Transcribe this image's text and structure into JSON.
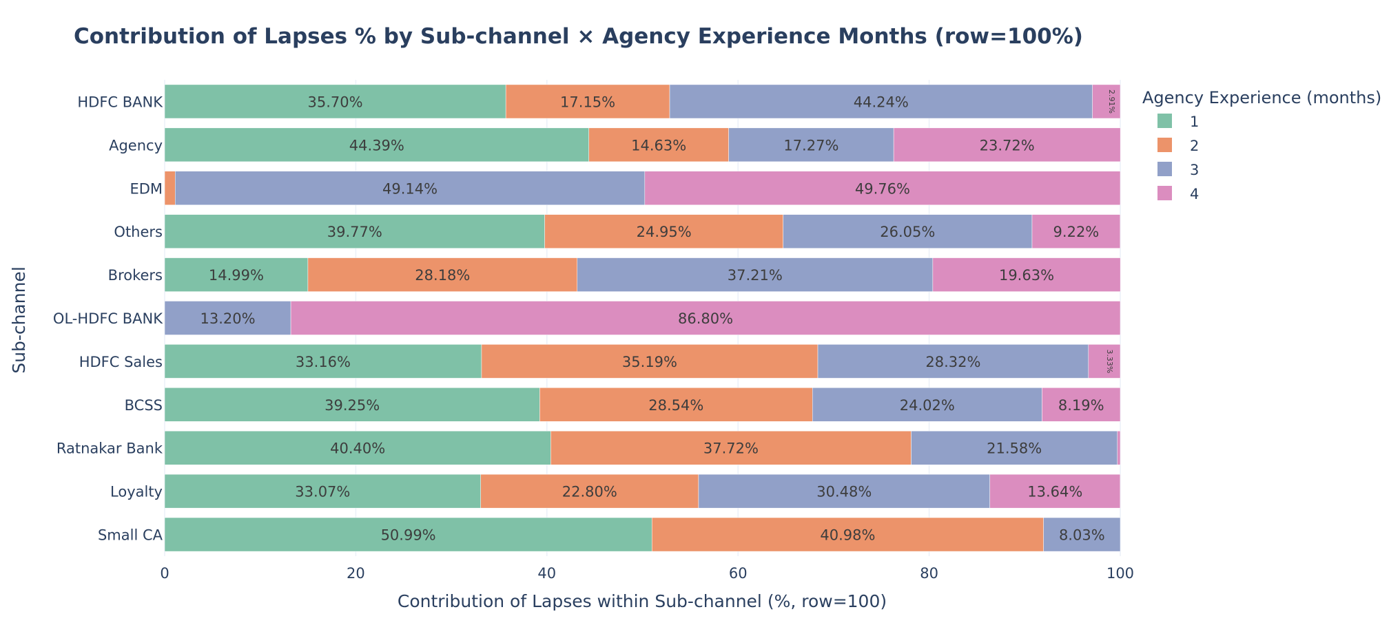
{
  "chart_data": {
    "type": "bar",
    "orientation": "horizontal",
    "stacked": true,
    "title": "Contribution of Lapses % by Sub-channel × Agency Experience Months (row=100%)",
    "xlabel": "Contribution of Lapses within Sub-channel (%, row=100)",
    "ylabel": "Sub-channel",
    "xlim": [
      0,
      100
    ],
    "xticks": [
      0,
      20,
      40,
      60,
      80,
      100
    ],
    "grid": true,
    "legend": {
      "title": "Agency Experience (months)",
      "placement": "right"
    },
    "categories": [
      "HDFC BANK",
      "Agency",
      "EDM",
      "Others",
      "Brokers",
      "OL-HDFC BANK",
      "HDFC Sales",
      "BCSS",
      "Ratnakar Bank",
      "Loyalty",
      "Small CA"
    ],
    "series": [
      {
        "name": "1",
        "color": "#7fc1a7",
        "values": [
          35.7,
          44.39,
          0,
          39.77,
          14.99,
          0,
          33.16,
          39.25,
          40.4,
          33.07,
          50.99
        ],
        "labels": [
          "35.70%",
          "44.39%",
          "",
          "39.77%",
          "14.99%",
          "",
          "33.16%",
          "39.25%",
          "40.40%",
          "33.07%",
          "50.99%"
        ]
      },
      {
        "name": "2",
        "color": "#ec936a",
        "values": [
          17.15,
          14.63,
          1.1,
          24.95,
          28.18,
          0,
          35.19,
          28.54,
          37.72,
          22.8,
          40.98
        ],
        "labels": [
          "17.15%",
          "14.63%",
          "",
          "24.95%",
          "28.18%",
          "",
          "35.19%",
          "28.54%",
          "37.72%",
          "22.80%",
          "40.98%"
        ]
      },
      {
        "name": "3",
        "color": "#91a0c8",
        "values": [
          44.24,
          17.27,
          49.14,
          26.05,
          37.21,
          13.2,
          28.32,
          24.02,
          21.58,
          30.48,
          8.03
        ],
        "labels": [
          "44.24%",
          "17.27%",
          "49.14%",
          "26.05%",
          "37.21%",
          "13.20%",
          "28.32%",
          "24.02%",
          "21.58%",
          "30.48%",
          "8.03%"
        ]
      },
      {
        "name": "4",
        "color": "#db8dbf",
        "values": [
          2.91,
          23.72,
          49.76,
          9.22,
          19.63,
          86.8,
          3.33,
          8.19,
          0.3,
          13.64,
          0
        ],
        "labels": [
          "2.91%",
          "23.72%",
          "49.76%",
          "9.22%",
          "19.63%",
          "86.80%",
          "3.33%",
          "8.19%",
          "",
          "13.64%",
          ""
        ]
      }
    ]
  }
}
